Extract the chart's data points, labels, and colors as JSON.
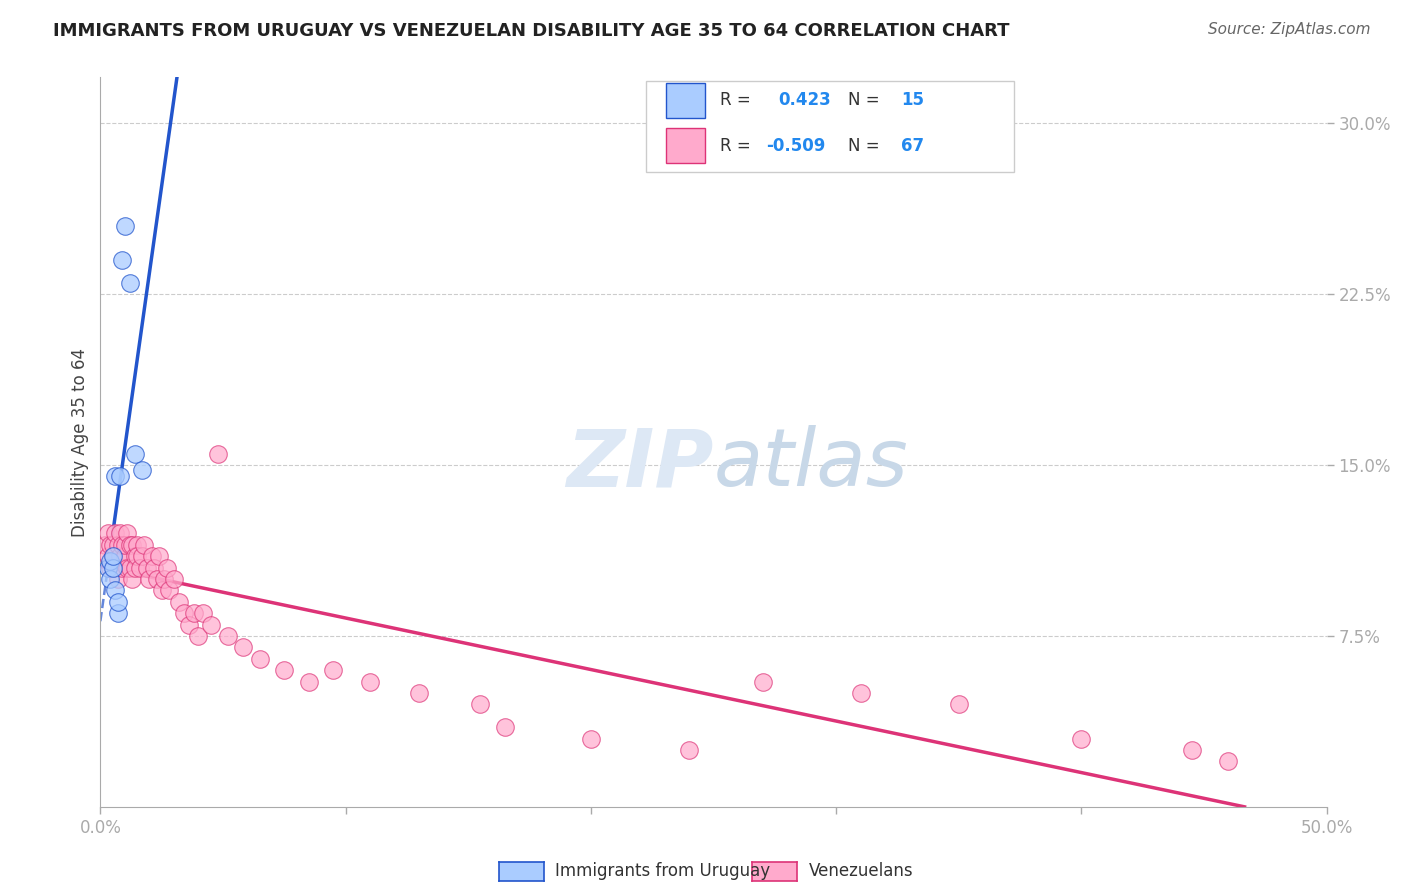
{
  "title": "IMMIGRANTS FROM URUGUAY VS VENEZUELAN DISABILITY AGE 35 TO 64 CORRELATION CHART",
  "source": "Source: ZipAtlas.com",
  "ylabel": "Disability Age 35 to 64",
  "xlim": [
    0.0,
    0.5
  ],
  "ylim": [
    0.0,
    0.32
  ],
  "xticks": [
    0.0,
    0.1,
    0.2,
    0.3,
    0.4,
    0.5
  ],
  "xtick_labels": [
    "0.0%",
    "",
    "",
    "",
    "",
    "50.0%"
  ],
  "yticks": [
    0.075,
    0.15,
    0.225,
    0.3
  ],
  "ytick_labels": [
    "7.5%",
    "15.0%",
    "22.5%",
    "30.0%"
  ],
  "grid_color": "#cccccc",
  "background_color": "#ffffff",
  "label1": "Immigrants from Uruguay",
  "label2": "Venezuelans",
  "dot_color1": "#aaccff",
  "dot_color2": "#ffaacc",
  "line_color1": "#2255cc",
  "line_color2": "#dd3377",
  "watermark_color": "#dde8f5",
  "uruguay_x": [
    0.003,
    0.004,
    0.004,
    0.005,
    0.005,
    0.006,
    0.006,
    0.007,
    0.007,
    0.008,
    0.009,
    0.01,
    0.012,
    0.014,
    0.017
  ],
  "uruguay_y": [
    0.105,
    0.1,
    0.108,
    0.105,
    0.11,
    0.145,
    0.095,
    0.085,
    0.09,
    0.145,
    0.24,
    0.255,
    0.23,
    0.155,
    0.148
  ],
  "venezuela_x": [
    0.002,
    0.003,
    0.003,
    0.004,
    0.004,
    0.005,
    0.005,
    0.006,
    0.006,
    0.007,
    0.007,
    0.008,
    0.008,
    0.009,
    0.009,
    0.01,
    0.01,
    0.011,
    0.011,
    0.012,
    0.012,
    0.013,
    0.013,
    0.014,
    0.014,
    0.015,
    0.015,
    0.016,
    0.017,
    0.018,
    0.019,
    0.02,
    0.021,
    0.022,
    0.023,
    0.024,
    0.025,
    0.026,
    0.027,
    0.028,
    0.03,
    0.032,
    0.034,
    0.036,
    0.038,
    0.04,
    0.042,
    0.045,
    0.048,
    0.052,
    0.058,
    0.065,
    0.075,
    0.085,
    0.095,
    0.11,
    0.13,
    0.155,
    0.165,
    0.2,
    0.24,
    0.27,
    0.31,
    0.35,
    0.4,
    0.445,
    0.46
  ],
  "venezuela_y": [
    0.115,
    0.12,
    0.11,
    0.115,
    0.105,
    0.11,
    0.115,
    0.12,
    0.105,
    0.115,
    0.1,
    0.12,
    0.11,
    0.115,
    0.105,
    0.11,
    0.115,
    0.105,
    0.12,
    0.115,
    0.105,
    0.1,
    0.115,
    0.11,
    0.105,
    0.115,
    0.11,
    0.105,
    0.11,
    0.115,
    0.105,
    0.1,
    0.11,
    0.105,
    0.1,
    0.11,
    0.095,
    0.1,
    0.105,
    0.095,
    0.1,
    0.09,
    0.085,
    0.08,
    0.085,
    0.075,
    0.085,
    0.08,
    0.155,
    0.075,
    0.07,
    0.065,
    0.06,
    0.055,
    0.06,
    0.055,
    0.05,
    0.045,
    0.035,
    0.03,
    0.025,
    0.055,
    0.05,
    0.045,
    0.03,
    0.025,
    0.02
  ]
}
